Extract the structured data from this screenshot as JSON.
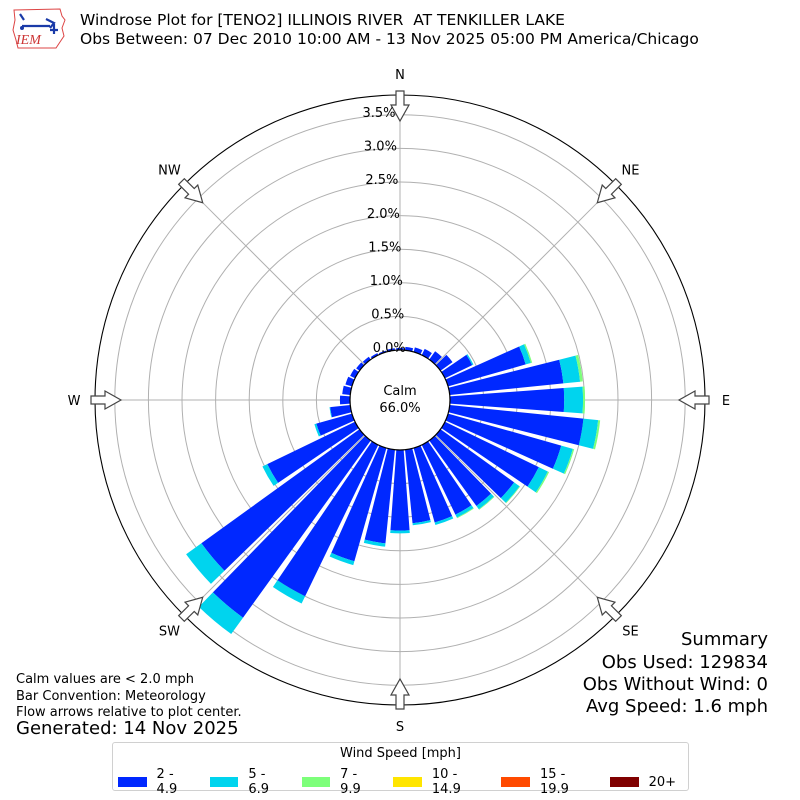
{
  "header": {
    "logo_text": "IEM",
    "title_line1": "Windrose Plot for [TENO2] ILLINOIS RIVER  AT TENKILLER LAKE",
    "title_line2": "Obs Between: 07 Dec 2010 10:00 AM - 13 Nov 2025 05:00 PM America/Chicago"
  },
  "notes": {
    "calm_note": "Calm values are < 2.0 mph",
    "bar_convention": "Bar Convention: Meteorology",
    "flow_arrows": "Flow arrows relative to plot center.",
    "generated": "Generated: 14 Nov 2025"
  },
  "summary": {
    "title": "Summary",
    "obs_used": "Obs Used: 129834",
    "obs_without_wind": "Obs Without Wind: 0",
    "avg_speed": "Avg Speed: 1.6 mph"
  },
  "center": {
    "label": "Calm",
    "value": "66.0%"
  },
  "legend": {
    "title": "Wind Speed [mph]",
    "items": [
      {
        "label": "2 - 4.9",
        "color": "#0028ff"
      },
      {
        "label": "5 - 6.9",
        "color": "#00d4ee"
      },
      {
        "label": "7 - 9.9",
        "color": "#7dff7a"
      },
      {
        "label": "10 - 14.9",
        "color": "#ffe500"
      },
      {
        "label": "15 - 19.9",
        "color": "#ff4a00"
      },
      {
        "label": "20+",
        "color": "#800000"
      }
    ]
  },
  "chart_data": {
    "type": "windrose",
    "title": "Windrose Plot for [TENO2] ILLINOIS RIVER  AT TENKILLER LAKE",
    "subtitle": "Obs Between: 07 Dec 2010 10:00 AM - 13 Nov 2025 05:00 PM America/Chicago",
    "compass_labels": [
      "N",
      "NE",
      "E",
      "SE",
      "S",
      "SW",
      "W",
      "NW"
    ],
    "radial_ticks": [
      "0.0%",
      "0.5%",
      "1.0%",
      "1.5%",
      "2.0%",
      "2.5%",
      "3.0%",
      "3.5%"
    ],
    "radial_max": 3.8,
    "calm_percent": 66.0,
    "bins": [
      "2 - 4.9",
      "5 - 6.9",
      "7 - 9.9",
      "10 - 14.9",
      "15 - 19.9",
      "20+"
    ],
    "directions_deg": [
      0,
      10,
      20,
      30,
      40,
      50,
      60,
      70,
      80,
      90,
      100,
      110,
      120,
      130,
      140,
      150,
      160,
      170,
      180,
      190,
      200,
      210,
      220,
      230,
      240,
      250,
      260,
      270,
      280,
      290,
      300,
      310,
      320,
      330,
      340,
      350
    ],
    "series": [
      {
        "name": "2 - 4.9",
        "values": [
          0.03,
          0.05,
          0.07,
          0.1,
          0.15,
          0.22,
          0.45,
          1.2,
          1.7,
          1.7,
          2.0,
          1.75,
          1.55,
          1.35,
          1.2,
          1.15,
          1.15,
          1.1,
          1.2,
          1.4,
          1.75,
          2.5,
          3.25,
          2.9,
          1.45,
          0.55,
          0.3,
          0.15,
          0.12,
          0.1,
          0.08,
          0.06,
          0.05,
          0.03,
          0.02,
          0.03
        ]
      },
      {
        "name": "5 - 6.9",
        "values": [
          0,
          0,
          0,
          0,
          0,
          0,
          0.02,
          0.08,
          0.25,
          0.28,
          0.22,
          0.18,
          0.15,
          0.1,
          0.06,
          0.05,
          0.04,
          0.03,
          0.04,
          0.05,
          0.06,
          0.12,
          0.3,
          0.28,
          0.08,
          0.03,
          0.01,
          0,
          0,
          0,
          0,
          0,
          0,
          0,
          0,
          0
        ]
      },
      {
        "name": "7 - 9.9",
        "values": [
          0,
          0,
          0,
          0,
          0,
          0,
          0,
          0.02,
          0.04,
          0.03,
          0.03,
          0.02,
          0.02,
          0.01,
          0.01,
          0.01,
          0,
          0,
          0,
          0,
          0,
          0,
          0,
          0,
          0,
          0,
          0,
          0,
          0,
          0,
          0,
          0,
          0,
          0,
          0,
          0
        ]
      },
      {
        "name": "10 - 14.9",
        "values": [
          0,
          0,
          0,
          0,
          0,
          0,
          0,
          0,
          0,
          0,
          0,
          0,
          0,
          0,
          0,
          0,
          0,
          0,
          0,
          0,
          0,
          0,
          0,
          0,
          0,
          0,
          0,
          0,
          0,
          0,
          0,
          0,
          0,
          0,
          0,
          0
        ]
      },
      {
        "name": "15 - 19.9",
        "values": [
          0,
          0,
          0,
          0,
          0,
          0,
          0,
          0,
          0,
          0,
          0,
          0,
          0,
          0,
          0,
          0,
          0,
          0,
          0,
          0,
          0,
          0,
          0,
          0,
          0,
          0,
          0,
          0,
          0,
          0,
          0,
          0,
          0,
          0,
          0,
          0
        ]
      },
      {
        "name": "20+",
        "values": [
          0,
          0,
          0,
          0,
          0,
          0,
          0,
          0,
          0,
          0,
          0,
          0,
          0,
          0,
          0,
          0,
          0,
          0,
          0,
          0,
          0,
          0,
          0,
          0,
          0,
          0,
          0,
          0,
          0,
          0,
          0,
          0,
          0,
          0,
          0,
          0
        ]
      }
    ],
    "summary": {
      "obs_used": 129834,
      "obs_without_wind": 0,
      "avg_speed_mph": 1.6,
      "calm_threshold_mph": 2.0
    },
    "grid": true,
    "legend_position": "bottom"
  }
}
